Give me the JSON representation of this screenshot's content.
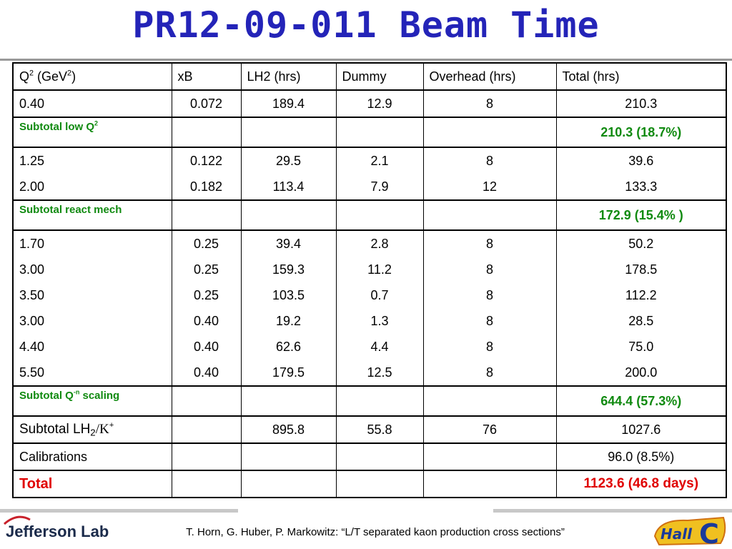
{
  "title": "PR12-09-011 Beam Time",
  "table": {
    "header": [
      [
        "Q",
        {
          "sup": "2"
        },
        " (GeV",
        {
          "sup": "2"
        },
        ")"
      ],
      "xB",
      "LH2 (hrs)",
      "Dummy",
      "Overhead (hrs)",
      "Total (hrs)"
    ],
    "rows": [
      [
        "0.40",
        "0.072",
        "189.4",
        "12.9",
        "8",
        "210.3"
      ],
      [
        [
          "Subtotal low Q",
          {
            "sup": "2"
          }
        ],
        null,
        null,
        null,
        null,
        "210.3 (18.7%)"
      ],
      [
        "1.25",
        "0.122",
        "29.5",
        "2.1",
        "8",
        "39.6"
      ],
      [
        "2.00",
        "0.182",
        "113.4",
        "7.9",
        "12",
        "133.3"
      ],
      [
        "Subtotal react mech",
        null,
        null,
        null,
        null,
        "172.9 (15.4% )"
      ],
      [
        "1.70",
        "0.25",
        "39.4",
        "2.8",
        "8",
        "50.2"
      ],
      [
        "3.00",
        "0.25",
        "159.3",
        "11.2",
        "8",
        "178.5"
      ],
      [
        "3.50",
        "0.25",
        "103.5",
        "0.7",
        "8",
        "112.2"
      ],
      [
        "3.00",
        "0.40",
        "19.2",
        "1.3",
        "8",
        "28.5"
      ],
      [
        "4.40",
        "0.40",
        "62.6",
        "4.4",
        "8",
        "75.0"
      ],
      [
        "5.50",
        "0.40",
        "179.5",
        "12.5",
        "8",
        "200.0"
      ],
      [
        [
          "Subtotal Q",
          {
            "sup": "-n"
          },
          " scaling"
        ],
        null,
        null,
        null,
        null,
        "644.4 (57.3%)"
      ],
      [
        [
          "Subtotal LH",
          {
            "sub": "2"
          },
          "/K",
          {
            "sup": "+"
          }
        ],
        null,
        "895.8",
        "55.8",
        "76",
        "1027.6"
      ],
      [
        "Calibrations",
        null,
        null,
        null,
        null,
        "96.0 (8.5%)"
      ],
      [
        "Total",
        null,
        null,
        null,
        null,
        "1123.6 (46.8 days)"
      ]
    ]
  },
  "footer": {
    "citation": "T. Horn, G. Huber, P. Markowitz: “L/T separated kaon production cross sections”",
    "logo_left": "Jefferson Lab",
    "logo_right_word": "Hall",
    "logo_right_letter": "C"
  }
}
